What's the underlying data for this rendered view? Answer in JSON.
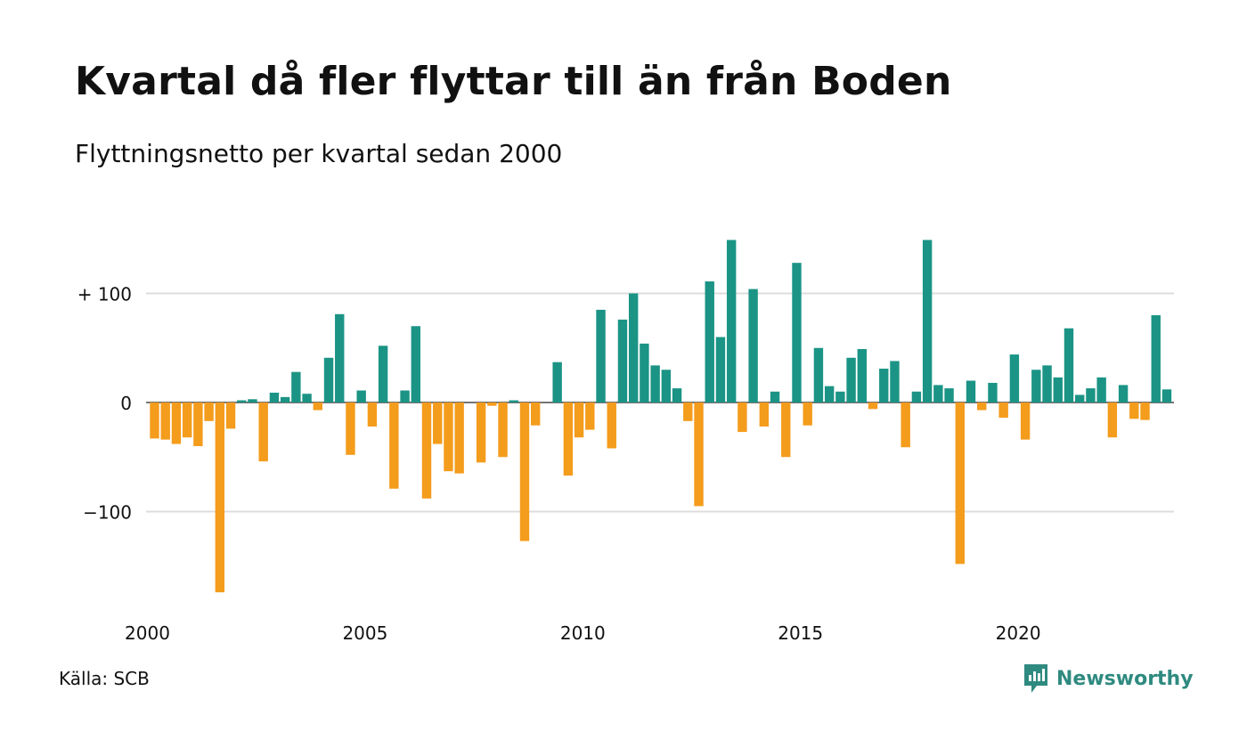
{
  "title": "Kvartal då fler flyttar till än från Boden",
  "subtitle": "Flyttningsnetto per kvartal sedan 2000",
  "source": "Källa: SCB",
  "brand": "Newsworthy",
  "colors": {
    "positive": "#1b9485",
    "negative": "#f49c1c",
    "grid": "#dddddd",
    "brand": "#2f8a80"
  },
  "chart_data": {
    "type": "bar",
    "x_start_year": 2000,
    "periods_per_year": 4,
    "xticks": [
      "2000",
      "2005",
      "2010",
      "2015",
      "2020"
    ],
    "yticks": [
      {
        "value": 100,
        "label": "+ 100"
      },
      {
        "value": 0,
        "label": "0"
      },
      {
        "value": -100,
        "label": "−100"
      }
    ],
    "ylim": [
      -180,
      155
    ],
    "grid": true,
    "values": [
      -33,
      -34,
      -38,
      -32,
      -40,
      -17,
      -174,
      -24,
      2,
      3,
      -54,
      9,
      5,
      28,
      8,
      -7,
      41,
      81,
      -48,
      11,
      -22,
      52,
      -79,
      11,
      70,
      -88,
      -38,
      -63,
      -65,
      0,
      -55,
      -3,
      -50,
      2,
      -127,
      -21,
      0,
      37,
      -67,
      -32,
      -25,
      85,
      -42,
      76,
      100,
      54,
      34,
      30,
      13,
      -17,
      -95,
      111,
      60,
      149,
      -27,
      104,
      -22,
      10,
      -50,
      128,
      -21,
      50,
      15,
      10,
      41,
      49,
      -6,
      31,
      38,
      -41,
      10,
      149,
      16,
      13,
      -148,
      20,
      -7,
      18,
      -14,
      44,
      -34,
      30,
      34,
      23,
      68,
      7,
      13,
      23,
      -32,
      16,
      -15,
      -16,
      80,
      12
    ]
  }
}
